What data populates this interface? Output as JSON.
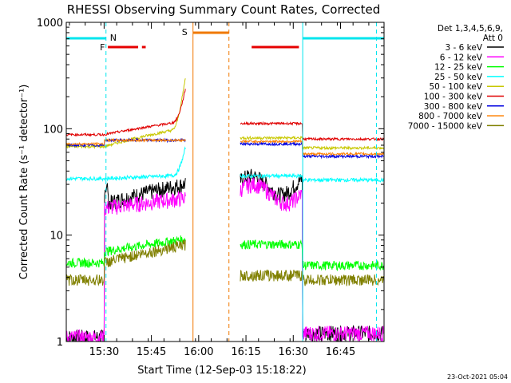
{
  "chart_data": {
    "type": "line",
    "title": "RHESSI Observing Summary Count Rates, Corrected",
    "ylabel": "Corrected Count Rate (s⁻¹ detector⁻¹)",
    "xlabel": "Start Time (12-Sep-03 15:18:22)",
    "yscale": "log",
    "ylim": [
      1,
      1000
    ],
    "xlim_minutes": [
      15.3,
      16.98
    ],
    "y_ticks": [
      "1",
      "10",
      "100",
      "1000"
    ],
    "x_ticks": [
      {
        "label": "15:30",
        "t": 15.5
      },
      {
        "label": "15:45",
        "t": 15.75
      },
      {
        "label": "16:00",
        "t": 16.0
      },
      {
        "label": "16:15",
        "t": 16.25
      },
      {
        "label": "16:30",
        "t": 16.5
      },
      {
        "label": "16:45",
        "t": 16.75
      }
    ],
    "legend_header": [
      "Det 1,3,4,5,6,9,",
      "Att 0"
    ],
    "legend_position": "right",
    "footer_date": "23-Oct-2021 05:04",
    "flags": {
      "N": {
        "label": "N",
        "color": "#00e5ee"
      },
      "F": {
        "label": "F",
        "color": "#e60000"
      },
      "S": {
        "label": "S",
        "color": "#f07800"
      }
    },
    "series": [
      {
        "name": "3 - 6 keV",
        "color": "#000000"
      },
      {
        "name": "6 - 12 keV",
        "color": "#ff00ff"
      },
      {
        "name": "12 - 25 keV",
        "color": "#00ff00"
      },
      {
        "name": "25 - 50 keV",
        "color": "#00ffff"
      },
      {
        "name": "50 - 100 keV",
        "color": "#c8c800"
      },
      {
        "name": "100 - 300 keV",
        "color": "#e00000"
      },
      {
        "name": "300 - 800 keV",
        "color": "#0000e0"
      },
      {
        "name": "800 - 7000 keV",
        "color": "#ff8000"
      },
      {
        "name": "7000 - 15000 keV",
        "color": "#808000"
      }
    ]
  }
}
